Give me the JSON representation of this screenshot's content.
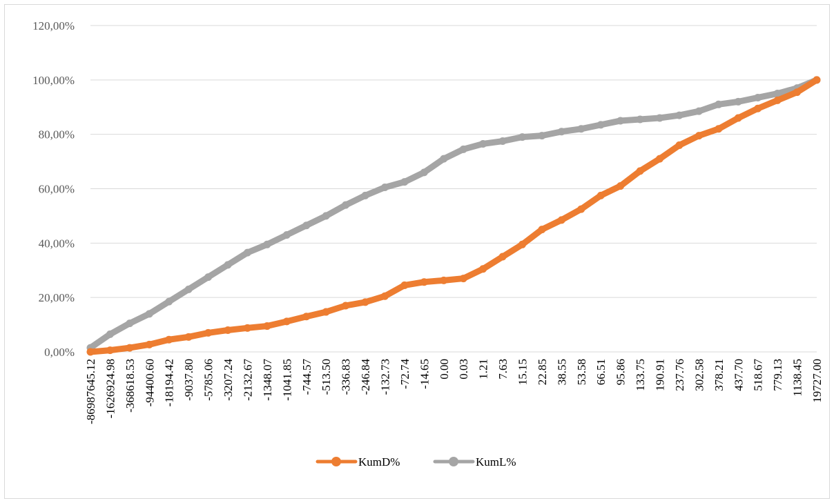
{
  "chart_data": {
    "type": "line",
    "title": "",
    "xlabel": "",
    "ylabel": "",
    "ylim": [
      0,
      120
    ],
    "y_ticks": [
      "0,00%",
      "20,00%",
      "40,00%",
      "60,00%",
      "80,00%",
      "100,00%",
      "120,00%"
    ],
    "grid": true,
    "legend_position": "bottom",
    "categories": [
      "-86987645.12",
      "-1626924.98",
      "-368618.53",
      "-94400.60",
      "-18194.42",
      "-9037.80",
      "-5785.06",
      "-3207.24",
      "-2132.67",
      "-1348.07",
      "-1041.85",
      "-744.57",
      "-513.50",
      "-336.83",
      "-246.84",
      "-132.73",
      "-72.74",
      "-14.65",
      "0.00",
      "0.03",
      "1.21",
      "7.63",
      "15.15",
      "22.85",
      "38.55",
      "53.58",
      "66.51",
      "95.86",
      "133.75",
      "190.91",
      "237.76",
      "302.58",
      "378.21",
      "437.70",
      "518.67",
      "779.13",
      "1138.45",
      "19727.00"
    ],
    "series": [
      {
        "name": "KumD%",
        "color": "#ed7d31",
        "values": [
          0.0,
          0.6,
          1.5,
          2.7,
          4.5,
          5.5,
          7.0,
          8.0,
          8.8,
          9.5,
          11.2,
          13.0,
          14.7,
          17.0,
          18.3,
          20.5,
          24.5,
          25.7,
          26.3,
          27.0,
          30.5,
          35.0,
          39.5,
          45.0,
          48.5,
          52.5,
          57.5,
          61.0,
          66.5,
          71.0,
          76.0,
          79.5,
          82.0,
          86.0,
          89.5,
          92.5,
          95.5,
          100.0
        ]
      },
      {
        "name": "KumL%",
        "color": "#a5a5a5",
        "values": [
          1.5,
          6.5,
          10.5,
          14.0,
          18.5,
          23.0,
          27.5,
          32.0,
          36.5,
          39.5,
          43.0,
          46.5,
          50.0,
          54.0,
          57.5,
          60.5,
          62.5,
          66.0,
          71.0,
          74.5,
          76.5,
          77.5,
          79.0,
          79.5,
          81.0,
          82.0,
          83.5,
          85.0,
          85.5,
          86.0,
          87.0,
          88.5,
          91.0,
          92.0,
          93.5,
          95.0,
          97.0,
          100.0
        ]
      }
    ]
  }
}
